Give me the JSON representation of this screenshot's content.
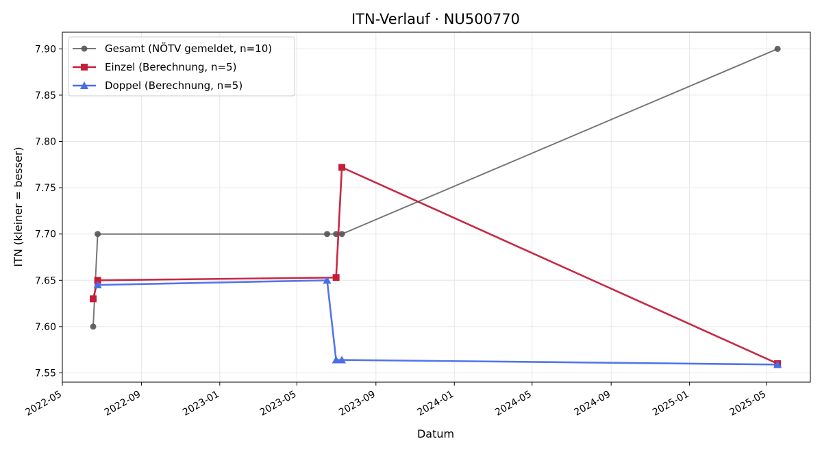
{
  "chart_data": {
    "type": "line",
    "title": "ITN-Verlauf · NU500770",
    "xlabel": "Datum",
    "ylabel": "ITN  (kleiner = besser)",
    "x_type": "date",
    "xlim": [
      "2022-05-01",
      "2025-07-08"
    ],
    "ylim": [
      7.54,
      7.918
    ],
    "x_ticks": [
      {
        "value": "2022-05-01",
        "label": "2022-05"
      },
      {
        "value": "2022-09-01",
        "label": "2022-09"
      },
      {
        "value": "2023-01-01",
        "label": "2023-01"
      },
      {
        "value": "2023-05-01",
        "label": "2023-05"
      },
      {
        "value": "2023-09-01",
        "label": "2023-09"
      },
      {
        "value": "2024-01-01",
        "label": "2024-01"
      },
      {
        "value": "2024-05-01",
        "label": "2024-05"
      },
      {
        "value": "2024-09-01",
        "label": "2024-09"
      },
      {
        "value": "2025-01-01",
        "label": "2025-01"
      },
      {
        "value": "2025-05-01",
        "label": "2025-05"
      }
    ],
    "y_ticks": [
      {
        "value": 7.55,
        "label": "7.55"
      },
      {
        "value": 7.6,
        "label": "7.60"
      },
      {
        "value": 7.65,
        "label": "7.65"
      },
      {
        "value": 7.7,
        "label": "7.70"
      },
      {
        "value": 7.75,
        "label": "7.75"
      },
      {
        "value": 7.8,
        "label": "7.80"
      },
      {
        "value": 7.85,
        "label": "7.85"
      },
      {
        "value": 7.9,
        "label": "7.90"
      }
    ],
    "grid": true,
    "legend_position": "top-left",
    "series": [
      {
        "name": "Gesamt (NÖTV gemeldet, n=10)",
        "color": "#555555",
        "marker": "circle",
        "points": [
          {
            "x": "2022-06-18",
            "y": 7.6
          },
          {
            "x": "2022-06-25",
            "y": 7.7
          },
          {
            "x": "2023-06-17",
            "y": 7.7
          },
          {
            "x": "2023-07-01",
            "y": 7.7
          },
          {
            "x": "2023-07-10",
            "y": 7.7
          },
          {
            "x": "2025-05-18",
            "y": 7.9
          }
        ]
      },
      {
        "name": "Einzel (Berechnung, n=5)",
        "color": "#c41e3a",
        "marker": "square",
        "points": [
          {
            "x": "2022-06-18",
            "y": 7.63
          },
          {
            "x": "2022-06-25",
            "y": 7.65
          },
          {
            "x": "2023-07-01",
            "y": 7.653
          },
          {
            "x": "2023-07-10",
            "y": 7.772
          },
          {
            "x": "2025-05-18",
            "y": 7.56
          }
        ]
      },
      {
        "name": "Doppel (Berechnung, n=5)",
        "color": "#4a6ee8",
        "marker": "triangle",
        "points": [
          {
            "x": "2022-06-25",
            "y": 7.645
          },
          {
            "x": "2023-06-17",
            "y": 7.65
          },
          {
            "x": "2023-07-01",
            "y": 7.564
          },
          {
            "x": "2023-07-10",
            "y": 7.564
          },
          {
            "x": "2025-05-18",
            "y": 7.559
          }
        ]
      }
    ]
  }
}
